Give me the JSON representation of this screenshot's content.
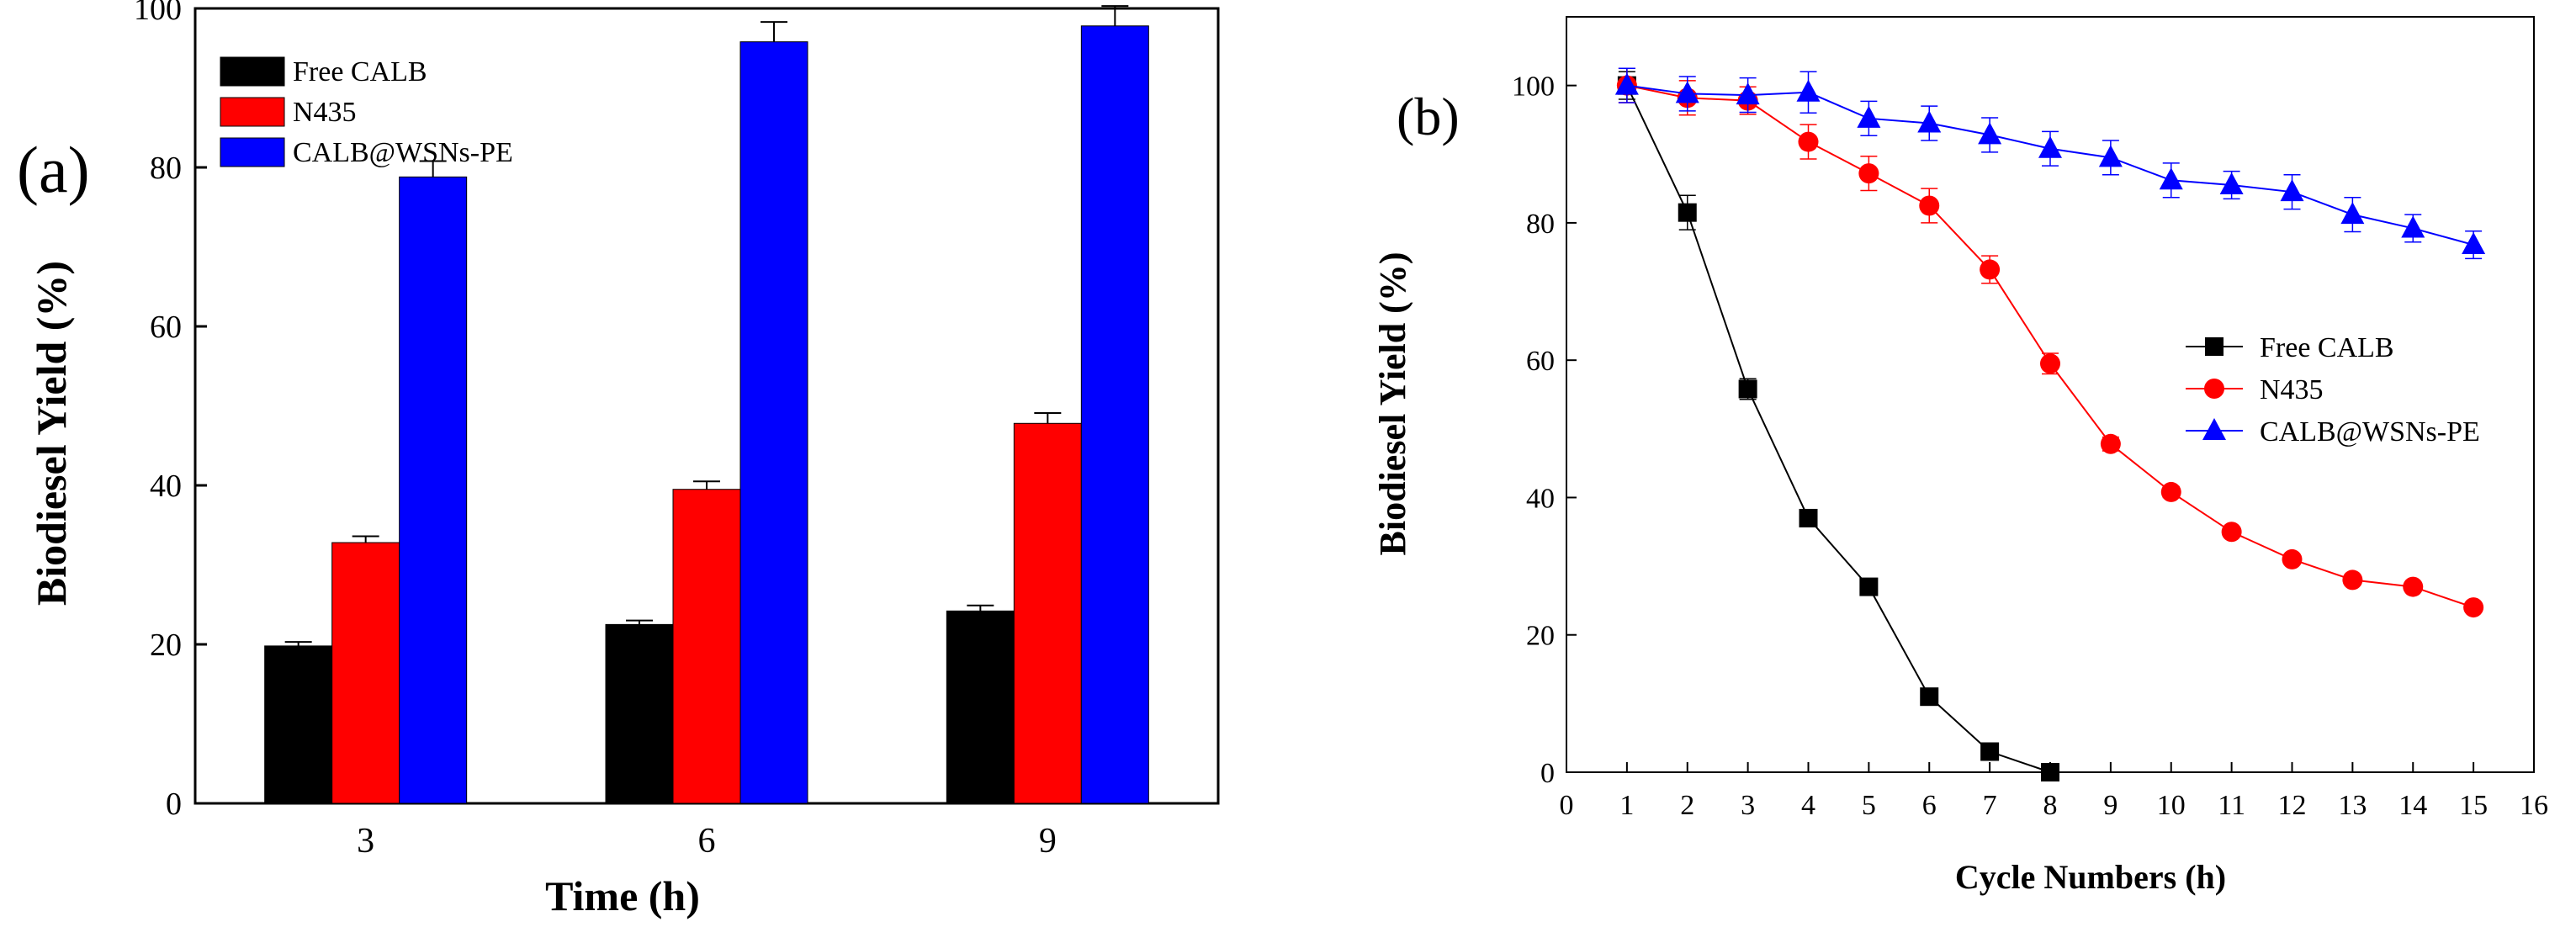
{
  "chart_data": [
    {
      "panel": "(a)",
      "type": "bar",
      "xlabel": "Time (h)",
      "ylabel": "Biodiesel Yield (%)",
      "ylim": [
        0,
        100
      ],
      "yticks": [
        0,
        20,
        40,
        60,
        80,
        100
      ],
      "categories": [
        "3",
        "6",
        "9"
      ],
      "legend_position": "top-left",
      "series": [
        {
          "name": "Free CALB",
          "color": "#000000",
          "values": [
            19.8,
            22.5,
            24.2
          ],
          "errors": [
            0.5,
            0.5,
            0.7
          ]
        },
        {
          "name": "N435",
          "color": "#ff0000",
          "values": [
            32.8,
            39.5,
            47.8
          ],
          "errors": [
            0.8,
            1.0,
            1.3
          ]
        },
        {
          "name": "CALB@WSNs-PE",
          "color": "#0000ff",
          "values": [
            78.8,
            95.8,
            97.8
          ],
          "errors": [
            2.0,
            2.5,
            2.5
          ]
        }
      ]
    },
    {
      "panel": "(b)",
      "type": "line",
      "xlabel": "Cycle Numbers (h)",
      "ylabel": "Biodiesel Yield (%)",
      "xlim": [
        0,
        16
      ],
      "ylim": [
        0,
        110
      ],
      "xticks": [
        0,
        1,
        2,
        3,
        4,
        5,
        6,
        7,
        8,
        9,
        10,
        11,
        12,
        13,
        14,
        15,
        16
      ],
      "yticks": [
        0,
        20,
        40,
        60,
        80,
        100
      ],
      "legend_position": "center-right",
      "series": [
        {
          "name": "Free CALB",
          "color": "#000000",
          "marker": "square",
          "x": [
            1,
            2,
            3,
            4,
            5,
            6,
            7,
            8
          ],
          "y": [
            100,
            81.5,
            55.8,
            37,
            27,
            11,
            3,
            0
          ],
          "errors": [
            2,
            2.5,
            1.5,
            1,
            1,
            1,
            1,
            0.5
          ]
        },
        {
          "name": "N435",
          "color": "#ff0000",
          "marker": "circle",
          "x": [
            1,
            2,
            3,
            4,
            5,
            6,
            7,
            8,
            9,
            10,
            11,
            12,
            13,
            14,
            15
          ],
          "y": [
            100,
            98.2,
            97.8,
            91.8,
            87.2,
            82.5,
            73.2,
            59.5,
            47.8,
            40.8,
            35,
            31,
            28,
            27,
            24
          ],
          "errors": [
            2.5,
            2.5,
            2,
            2.5,
            2.5,
            2.5,
            2,
            1.5,
            1,
            0.8,
            0.5,
            0.5,
            0.5,
            0.5,
            0.5
          ]
        },
        {
          "name": "CALB@WSNs-PE",
          "color": "#0000ff",
          "marker": "triangle",
          "x": [
            1,
            2,
            3,
            4,
            5,
            6,
            7,
            8,
            9,
            10,
            11,
            12,
            13,
            14,
            15
          ],
          "y": [
            100,
            98.8,
            98.6,
            99,
            95.2,
            94.5,
            92.8,
            90.8,
            89.5,
            86.2,
            85.5,
            84.5,
            81.2,
            79.2,
            76.8
          ],
          "errors": [
            2.5,
            2.5,
            2.5,
            3,
            2.5,
            2.5,
            2.5,
            2.5,
            2.5,
            2.5,
            2,
            2.5,
            2.5,
            2,
            2
          ]
        }
      ]
    }
  ]
}
